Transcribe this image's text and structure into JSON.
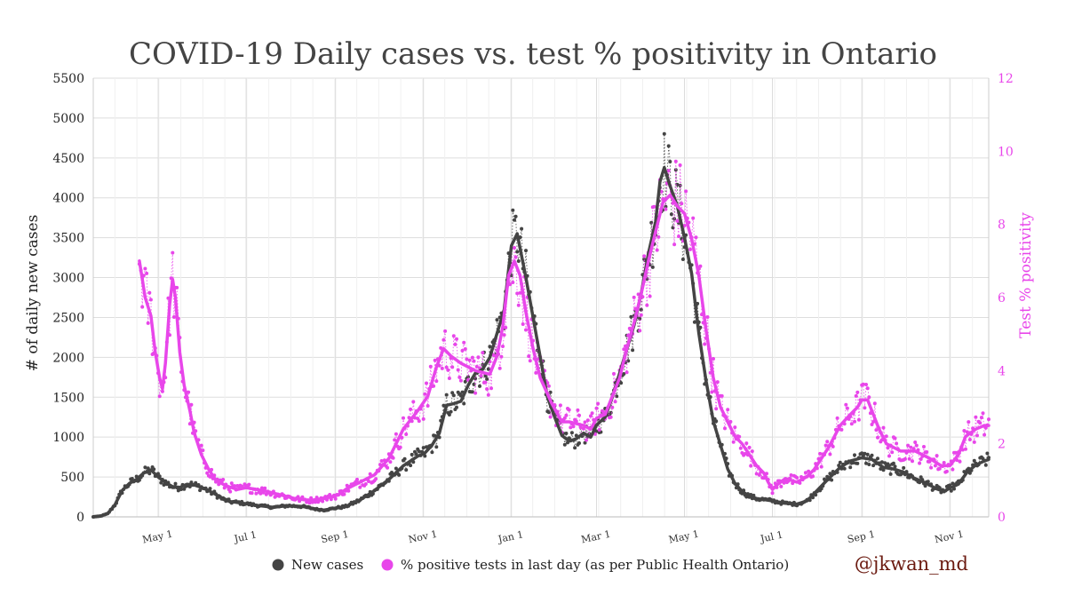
{
  "chart_data": {
    "type": "line",
    "title": "COVID-19 Daily cases vs. test % positivity in Ontario",
    "ylabel": "# of daily new cases",
    "y2label": "Test % positivity",
    "ylim": [
      0,
      5500
    ],
    "y2lim": [
      0,
      12
    ],
    "yticks": [
      0,
      500,
      1000,
      1500,
      2000,
      2500,
      3000,
      3500,
      4000,
      4500,
      5000,
      5500
    ],
    "y2ticks": [
      0,
      2,
      4,
      6,
      8,
      10,
      12
    ],
    "xlim_days": [
      0,
      621
    ],
    "xticks": [
      {
        "label": "May 1",
        "day": 45
      },
      {
        "label": "Jul 1",
        "day": 106
      },
      {
        "label": "Sep 1",
        "day": 168
      },
      {
        "label": "Nov 1",
        "day": 229
      },
      {
        "label": "Jan 1",
        "day": 290
      },
      {
        "label": "Mar 1",
        "day": 349
      },
      {
        "label": "May 1",
        "day": 410
      },
      {
        "label": "Jul 1",
        "day": 471
      },
      {
        "label": "Sep 1",
        "day": 533
      },
      {
        "label": "Nov 1",
        "day": 594
      }
    ],
    "series": [
      {
        "name": "New cases",
        "axis": "left",
        "color": "#444444",
        "points": [
          [
            0,
            0
          ],
          [
            5,
            10
          ],
          [
            10,
            40
          ],
          [
            15,
            150
          ],
          [
            20,
            330
          ],
          [
            25,
            420
          ],
          [
            30,
            470
          ],
          [
            35,
            550
          ],
          [
            40,
            590
          ],
          [
            45,
            500
          ],
          [
            50,
            430
          ],
          [
            55,
            380
          ],
          [
            60,
            370
          ],
          [
            65,
            410
          ],
          [
            70,
            400
          ],
          [
            75,
            370
          ],
          [
            80,
            330
          ],
          [
            85,
            280
          ],
          [
            90,
            220
          ],
          [
            95,
            190
          ],
          [
            100,
            180
          ],
          [
            106,
            165
          ],
          [
            115,
            140
          ],
          [
            125,
            120
          ],
          [
            135,
            140
          ],
          [
            145,
            130
          ],
          [
            155,
            95
          ],
          [
            160,
            85
          ],
          [
            168,
            110
          ],
          [
            175,
            130
          ],
          [
            185,
            210
          ],
          [
            195,
            330
          ],
          [
            205,
            470
          ],
          [
            215,
            640
          ],
          [
            225,
            760
          ],
          [
            230,
            800
          ],
          [
            235,
            900
          ],
          [
            240,
            1050
          ],
          [
            245,
            1400
          ],
          [
            250,
            1420
          ],
          [
            255,
            1450
          ],
          [
            260,
            1650
          ],
          [
            265,
            1800
          ],
          [
            270,
            1850
          ],
          [
            275,
            2000
          ],
          [
            280,
            2300
          ],
          [
            285,
            2600
          ],
          [
            288,
            3100
          ],
          [
            290,
            3400
          ],
          [
            294,
            3550
          ],
          [
            300,
            3000
          ],
          [
            305,
            2500
          ],
          [
            310,
            2000
          ],
          [
            315,
            1500
          ],
          [
            320,
            1250
          ],
          [
            325,
            1020
          ],
          [
            330,
            950
          ],
          [
            335,
            980
          ],
          [
            340,
            1050
          ],
          [
            345,
            1000
          ],
          [
            349,
            1150
          ],
          [
            355,
            1250
          ],
          [
            360,
            1500
          ],
          [
            365,
            1800
          ],
          [
            370,
            2100
          ],
          [
            375,
            2400
          ],
          [
            380,
            2800
          ],
          [
            385,
            3300
          ],
          [
            390,
            3700
          ],
          [
            393,
            4200
          ],
          [
            396,
            4380
          ],
          [
            400,
            4150
          ],
          [
            405,
            3900
          ],
          [
            410,
            3500
          ],
          [
            415,
            3050
          ],
          [
            420,
            2300
          ],
          [
            425,
            1700
          ],
          [
            430,
            1200
          ],
          [
            435,
            900
          ],
          [
            440,
            600
          ],
          [
            445,
            420
          ],
          [
            450,
            320
          ],
          [
            455,
            260
          ],
          [
            460,
            230
          ],
          [
            471,
            200
          ],
          [
            480,
            170
          ],
          [
            488,
            160
          ],
          [
            495,
            200
          ],
          [
            502,
            330
          ],
          [
            510,
            480
          ],
          [
            518,
            620
          ],
          [
            525,
            700
          ],
          [
            533,
            740
          ],
          [
            540,
            720
          ],
          [
            548,
            620
          ],
          [
            555,
            600
          ],
          [
            562,
            560
          ],
          [
            570,
            480
          ],
          [
            578,
            420
          ],
          [
            585,
            350
          ],
          [
            590,
            320
          ],
          [
            594,
            360
          ],
          [
            600,
            410
          ],
          [
            606,
            560
          ],
          [
            612,
            650
          ],
          [
            618,
            700
          ],
          [
            621,
            720
          ]
        ]
      },
      {
        "name": "% positive tests in last day (as per Public Health Ontario)",
        "axis": "right",
        "color": "#e846ea",
        "points": [
          [
            32,
            7.0
          ],
          [
            34,
            6.5
          ],
          [
            36,
            6.0
          ],
          [
            40,
            5.5
          ],
          [
            43,
            4.5
          ],
          [
            46,
            3.8
          ],
          [
            48,
            3.5
          ],
          [
            50,
            4.2
          ],
          [
            53,
            5.8
          ],
          [
            55,
            6.5
          ],
          [
            57,
            6.0
          ],
          [
            60,
            4.5
          ],
          [
            63,
            3.6
          ],
          [
            67,
            2.9
          ],
          [
            70,
            2.3
          ],
          [
            75,
            1.7
          ],
          [
            80,
            1.3
          ],
          [
            85,
            1.0
          ],
          [
            92,
            0.85
          ],
          [
            100,
            0.75
          ],
          [
            106,
            0.8
          ],
          [
            113,
            0.75
          ],
          [
            120,
            0.7
          ],
          [
            130,
            0.6
          ],
          [
            140,
            0.5
          ],
          [
            150,
            0.45
          ],
          [
            160,
            0.5
          ],
          [
            165,
            0.55
          ],
          [
            170,
            0.6
          ],
          [
            175,
            0.75
          ],
          [
            185,
            0.95
          ],
          [
            195,
            1.15
          ],
          [
            205,
            1.6
          ],
          [
            215,
            2.4
          ],
          [
            225,
            2.9
          ],
          [
            232,
            3.3
          ],
          [
            238,
            4.1
          ],
          [
            243,
            4.6
          ],
          [
            248,
            4.4
          ],
          [
            255,
            4.2
          ],
          [
            265,
            4.0
          ],
          [
            275,
            3.9
          ],
          [
            280,
            4.4
          ],
          [
            284,
            5.2
          ],
          [
            288,
            6.6
          ],
          [
            292,
            7.0
          ],
          [
            296,
            6.6
          ],
          [
            300,
            5.6
          ],
          [
            305,
            4.6
          ],
          [
            310,
            3.8
          ],
          [
            318,
            3.1
          ],
          [
            325,
            2.6
          ],
          [
            330,
            2.6
          ],
          [
            340,
            2.5
          ],
          [
            345,
            2.4
          ],
          [
            349,
            2.7
          ],
          [
            355,
            2.8
          ],
          [
            360,
            3.3
          ],
          [
            365,
            3.8
          ],
          [
            370,
            4.6
          ],
          [
            375,
            5.3
          ],
          [
            380,
            6.1
          ],
          [
            385,
            7.0
          ],
          [
            390,
            7.8
          ],
          [
            395,
            8.6
          ],
          [
            400,
            8.8
          ],
          [
            405,
            8.5
          ],
          [
            410,
            8.3
          ],
          [
            415,
            7.6
          ],
          [
            420,
            6.6
          ],
          [
            425,
            5.1
          ],
          [
            430,
            3.8
          ],
          [
            435,
            3.0
          ],
          [
            440,
            2.6
          ],
          [
            445,
            2.2
          ],
          [
            450,
            2.0
          ],
          [
            455,
            1.7
          ],
          [
            460,
            1.4
          ],
          [
            465,
            1.2
          ],
          [
            468,
            0.95
          ],
          [
            471,
            0.75
          ],
          [
            475,
            0.9
          ],
          [
            480,
            1.05
          ],
          [
            488,
            0.95
          ],
          [
            495,
            1.1
          ],
          [
            500,
            1.3
          ],
          [
            510,
            1.9
          ],
          [
            518,
            2.5
          ],
          [
            525,
            2.8
          ],
          [
            530,
            3.0
          ],
          [
            533,
            3.2
          ],
          [
            537,
            3.2
          ],
          [
            540,
            2.9
          ],
          [
            545,
            2.4
          ],
          [
            550,
            2.0
          ],
          [
            560,
            1.8
          ],
          [
            570,
            1.8
          ],
          [
            580,
            1.6
          ],
          [
            588,
            1.4
          ],
          [
            594,
            1.4
          ],
          [
            600,
            1.7
          ],
          [
            605,
            2.2
          ],
          [
            612,
            2.4
          ],
          [
            618,
            2.5
          ],
          [
            621,
            2.5
          ]
        ]
      }
    ],
    "legend": {
      "placement": "bottom",
      "entries": [
        "New cases",
        "% positive tests in last day (as per Public Health Ontario)"
      ]
    }
  },
  "credit": "@jkwan_md"
}
